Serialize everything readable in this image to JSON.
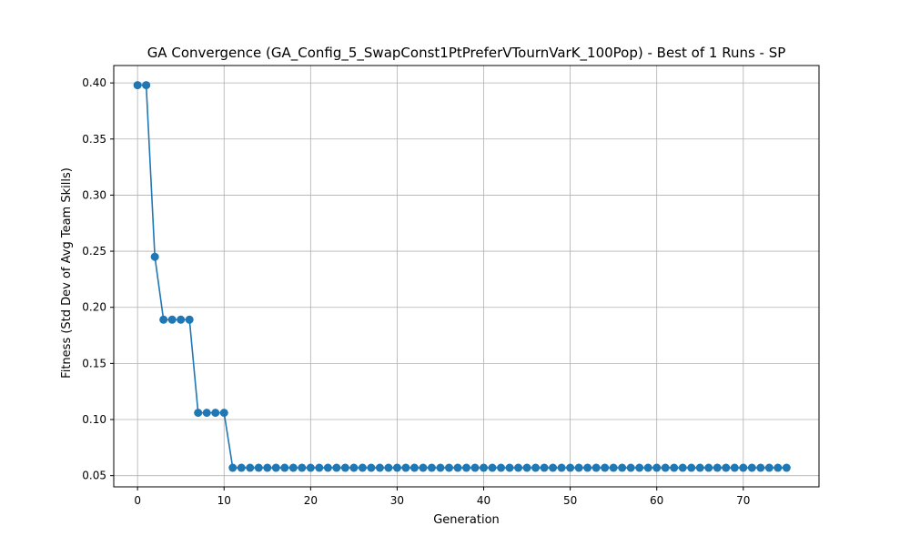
{
  "chart_data": {
    "type": "line",
    "title": "GA Convergence (GA_Config_5_SwapConst1PtPreferVTournVarK_100Pop) - Best of 1 Runs - SP",
    "xlabel": "Generation",
    "ylabel": "Fitness (Std Dev of Avg Team Skills)",
    "xlim": [
      -2.75,
      78.75
    ],
    "ylim": [
      0.04,
      0.4155
    ],
    "xticks": [
      0,
      10,
      20,
      30,
      40,
      50,
      60,
      70
    ],
    "yticks": [
      0.05,
      0.1,
      0.15,
      0.2,
      0.25,
      0.3,
      0.35,
      0.4
    ],
    "ytick_labels": [
      "0.05",
      "0.10",
      "0.15",
      "0.20",
      "0.25",
      "0.30",
      "0.35",
      "0.40"
    ],
    "grid": true,
    "legend": "none",
    "series_color": "#1f77b4",
    "grid_color": "#b0b0b0",
    "x": [
      0,
      1,
      2,
      3,
      4,
      5,
      6,
      7,
      8,
      9,
      10,
      11,
      12,
      13,
      14,
      15,
      16,
      17,
      18,
      19,
      20,
      21,
      22,
      23,
      24,
      25,
      26,
      27,
      28,
      29,
      30,
      31,
      32,
      33,
      34,
      35,
      36,
      37,
      38,
      39,
      40,
      41,
      42,
      43,
      44,
      45,
      46,
      47,
      48,
      49,
      50,
      51,
      52,
      53,
      54,
      55,
      56,
      57,
      58,
      59,
      60,
      61,
      62,
      63,
      64,
      65,
      66,
      67,
      68,
      69,
      70,
      71,
      72,
      73,
      74,
      75
    ],
    "series": [
      {
        "values": [
          0.398,
          0.398,
          0.245,
          0.189,
          0.189,
          0.189,
          0.189,
          0.106,
          0.106,
          0.106,
          0.106,
          0.057,
          0.057,
          0.057,
          0.057,
          0.057,
          0.057,
          0.057,
          0.057,
          0.057,
          0.057,
          0.057,
          0.057,
          0.057,
          0.057,
          0.057,
          0.057,
          0.057,
          0.057,
          0.057,
          0.057,
          0.057,
          0.057,
          0.057,
          0.057,
          0.057,
          0.057,
          0.057,
          0.057,
          0.057,
          0.057,
          0.057,
          0.057,
          0.057,
          0.057,
          0.057,
          0.057,
          0.057,
          0.057,
          0.057,
          0.057,
          0.057,
          0.057,
          0.057,
          0.057,
          0.057,
          0.057,
          0.057,
          0.057,
          0.057,
          0.057,
          0.057,
          0.057,
          0.057,
          0.057,
          0.057,
          0.057,
          0.057,
          0.057,
          0.057,
          0.057,
          0.057,
          0.057,
          0.057,
          0.057,
          0.057
        ]
      }
    ]
  }
}
